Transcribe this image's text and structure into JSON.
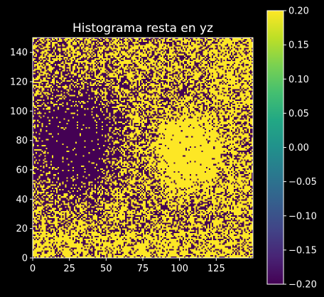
{
  "chart_data": [
    {
      "type": "heatmap",
      "title": "Histograma resta en yz",
      "xlabel": "",
      "ylabel": "",
      "xlim": [
        0,
        150
      ],
      "ylim": [
        0,
        150
      ],
      "grid_size": [
        150,
        150
      ],
      "origin": "lower",
      "colormap": "viridis",
      "value_range": [
        -0.2,
        0.2
      ],
      "dominant_values": [
        -0.2,
        0.2
      ],
      "x_ticks": [
        "0",
        "25",
        "50",
        "75",
        "100",
        "125"
      ],
      "x_tick_values": [
        0,
        25,
        50,
        75,
        100,
        125
      ],
      "y_ticks": [
        "0",
        "20",
        "40",
        "60",
        "80",
        "100",
        "120",
        "140"
      ],
      "y_tick_values": [
        0,
        20,
        40,
        60,
        80,
        100,
        120,
        140
      ],
      "regions": [
        {
          "description": "mostly low (-0.2)",
          "x_range": [
            0,
            75
          ],
          "y_range": [
            20,
            140
          ],
          "fraction_high": 0.18
        },
        {
          "description": "mostly high (0.2)",
          "x_range": [
            80,
            135
          ],
          "y_range": [
            40,
            110
          ],
          "fraction_high": 0.9
        },
        {
          "description": "mixed",
          "x_range": [
            0,
            150
          ],
          "y_range": [
            0,
            20
          ],
          "fraction_high": 0.7
        }
      ],
      "grid_on": false
    },
    {
      "type": "colorbar",
      "colormap": "viridis",
      "range": [
        -0.2,
        0.2
      ],
      "ticks": [
        "0.20",
        "0.15",
        "0.10",
        "0.05",
        "0.00",
        "−0.05",
        "−0.10",
        "−0.15",
        "−0.20"
      ],
      "tick_values": [
        0.2,
        0.15,
        0.1,
        0.05,
        0.0,
        -0.05,
        -0.1,
        -0.15,
        -0.2
      ]
    }
  ]
}
